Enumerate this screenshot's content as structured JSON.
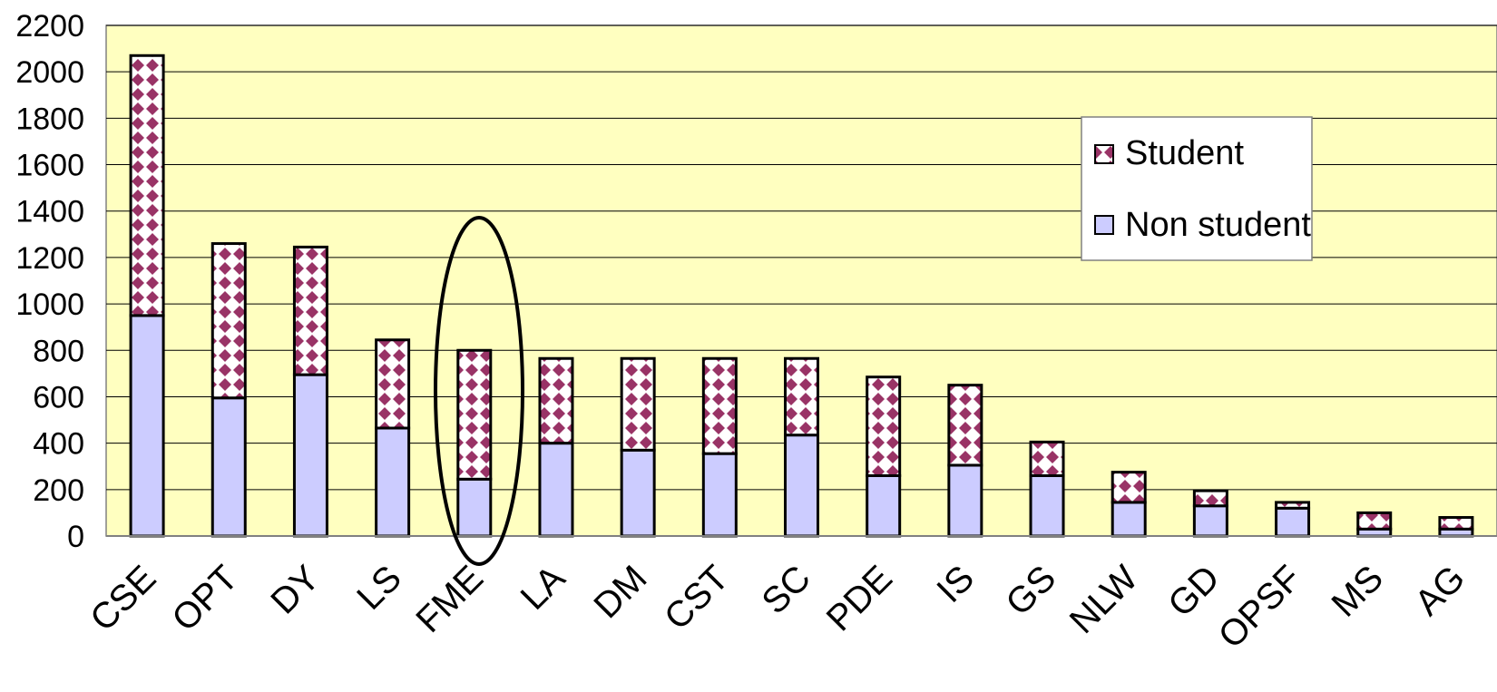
{
  "chart_data": {
    "type": "bar",
    "stacked": true,
    "categories": [
      "CSE",
      "OPT",
      "DY",
      "LS",
      "FME",
      "LA",
      "DM",
      "CST",
      "SC",
      "PDE",
      "IS",
      "GS",
      "NLW",
      "GD",
      "OPSF",
      "MS",
      "AG"
    ],
    "series": [
      {
        "name": "Non student",
        "values": [
          950,
          595,
          695,
          465,
          245,
          400,
          370,
          355,
          435,
          260,
          305,
          260,
          145,
          130,
          120,
          30,
          30
        ]
      },
      {
        "name": "Student",
        "values": [
          1120,
          665,
          550,
          380,
          555,
          365,
          395,
          410,
          330,
          425,
          345,
          145,
          130,
          65,
          25,
          70,
          50
        ]
      }
    ],
    "ylim": [
      0,
      2200
    ],
    "yticks": [
      0,
      200,
      400,
      600,
      800,
      1000,
      1200,
      1400,
      1600,
      1800,
      2000,
      2200
    ],
    "grid": true,
    "legend_position": "top-right",
    "highlight": "FME",
    "colors": {
      "plot_bg": "#FFFFC0",
      "non_student": "#CCCCFF",
      "student_pattern": "#993366",
      "student_bg": "#FFFFFF"
    }
  }
}
